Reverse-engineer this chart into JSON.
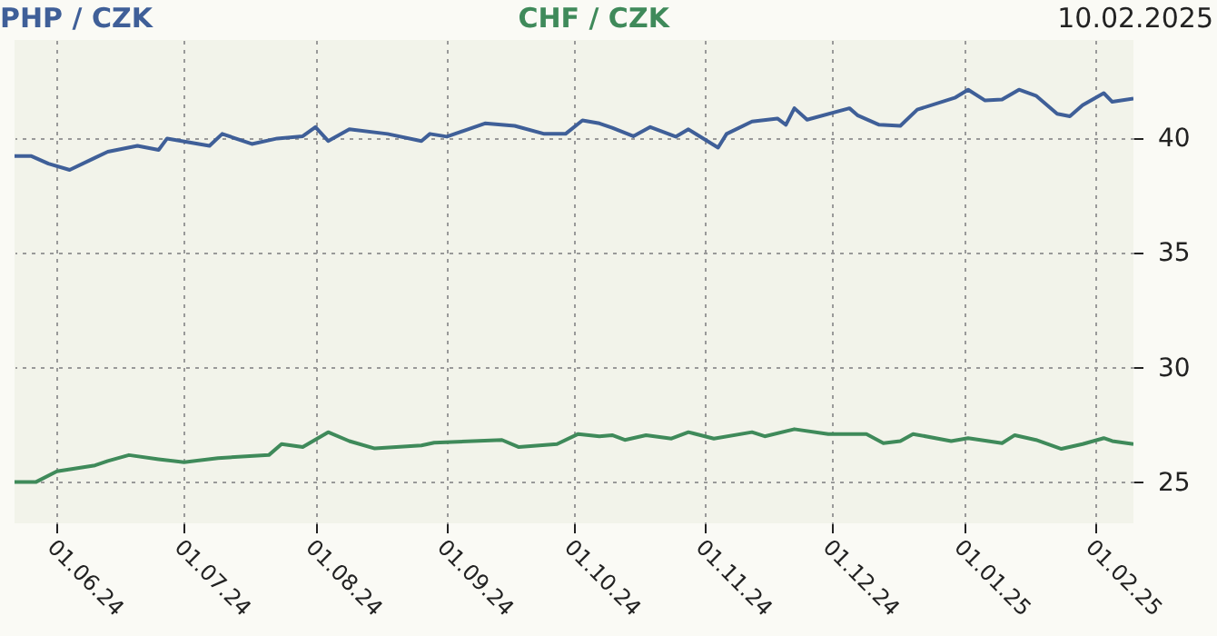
{
  "chart_data": {
    "type": "line",
    "annotations": [
      "10.02.2025"
    ],
    "legend": "top",
    "grid": true,
    "line_style": "solid",
    "xlim": [
      "2024-05-22",
      "2025-02-10"
    ],
    "xticks": [
      {
        "value": "2024-06-01",
        "label": "01.06.24"
      },
      {
        "value": "2024-07-01",
        "label": "01.07.24"
      },
      {
        "value": "2024-08-01",
        "label": "01.08.24"
      },
      {
        "value": "2024-09-01",
        "label": "01.09.24"
      },
      {
        "value": "2024-10-01",
        "label": "01.10.24"
      },
      {
        "value": "2024-11-01",
        "label": "01.11.24"
      },
      {
        "value": "2024-12-01",
        "label": "01.12.24"
      },
      {
        "value": "2025-01-01",
        "label": "01.01.25"
      },
      {
        "value": "2025-02-01",
        "label": "01.02.25"
      }
    ],
    "ylim": [
      23.2,
      44.3
    ],
    "yticks": [
      25,
      30,
      35,
      40
    ],
    "series": [
      {
        "name": "PHP / CZK",
        "color": "#3f5f98",
        "x": [
          "2024-05-22",
          "2024-05-26",
          "2024-05-30",
          "2024-06-04",
          "2024-06-10",
          "2024-06-13",
          "2024-06-20",
          "2024-06-25",
          "2024-06-27",
          "2024-07-07",
          "2024-07-10",
          "2024-07-17",
          "2024-07-23",
          "2024-07-29",
          "2024-08-01",
          "2024-08-04",
          "2024-08-09",
          "2024-08-18",
          "2024-08-26",
          "2024-08-28",
          "2024-09-01",
          "2024-09-10",
          "2024-09-17",
          "2024-09-24",
          "2024-09-29",
          "2024-10-03",
          "2024-10-07",
          "2024-10-10",
          "2024-10-15",
          "2024-10-19",
          "2024-10-25",
          "2024-10-28",
          "2024-11-04",
          "2024-11-06",
          "2024-11-12",
          "2024-11-18",
          "2024-11-20",
          "2024-11-22",
          "2024-11-25",
          "2024-12-05",
          "2024-12-07",
          "2024-12-12",
          "2024-12-17",
          "2024-12-21",
          "2024-12-30",
          "2025-01-02",
          "2025-01-06",
          "2025-01-10",
          "2025-01-14",
          "2025-01-18",
          "2025-01-23",
          "2025-01-26",
          "2025-01-29",
          "2025-02-03",
          "2025-02-05",
          "2025-02-10"
        ],
        "values": [
          39.23,
          39.23,
          38.9,
          38.63,
          39.16,
          39.42,
          39.68,
          39.5,
          40.0,
          39.68,
          40.2,
          39.76,
          40.0,
          40.1,
          40.5,
          39.89,
          40.4,
          40.2,
          39.89,
          40.2,
          40.08,
          40.66,
          40.55,
          40.2,
          40.2,
          40.79,
          40.66,
          40.47,
          40.1,
          40.5,
          40.08,
          40.4,
          39.6,
          40.2,
          40.74,
          40.87,
          40.6,
          41.32,
          40.82,
          41.32,
          41.0,
          40.6,
          40.55,
          41.26,
          41.79,
          42.13,
          41.66,
          41.7,
          42.13,
          41.87,
          41.08,
          40.97,
          41.45,
          41.98,
          41.6,
          41.74
        ]
      },
      {
        "name": "CHF / CZK",
        "color": "#3f8a5a",
        "x": [
          "2024-05-22",
          "2024-05-27",
          "2024-06-01",
          "2024-06-10",
          "2024-06-13",
          "2024-06-18",
          "2024-06-25",
          "2024-07-01",
          "2024-07-09",
          "2024-07-21",
          "2024-07-24",
          "2024-07-29",
          "2024-08-04",
          "2024-08-09",
          "2024-08-15",
          "2024-08-26",
          "2024-08-29",
          "2024-09-14",
          "2024-09-18",
          "2024-09-27",
          "2024-10-02",
          "2024-10-07",
          "2024-10-10",
          "2024-10-13",
          "2024-10-18",
          "2024-10-24",
          "2024-10-28",
          "2024-11-03",
          "2024-11-12",
          "2024-11-15",
          "2024-11-22",
          "2024-11-30",
          "2024-12-09",
          "2024-12-13",
          "2024-12-17",
          "2024-12-20",
          "2024-12-29",
          "2025-01-02",
          "2025-01-10",
          "2025-01-13",
          "2025-01-18",
          "2025-01-24",
          "2025-01-29",
          "2025-02-03",
          "2025-02-05",
          "2025-02-10"
        ],
        "values": [
          25.0,
          25.0,
          25.47,
          25.73,
          25.92,
          26.18,
          26.0,
          25.87,
          26.05,
          26.18,
          26.66,
          26.53,
          27.18,
          26.79,
          26.47,
          26.6,
          26.72,
          26.84,
          26.53,
          26.66,
          27.1,
          27.0,
          27.05,
          26.84,
          27.05,
          26.9,
          27.18,
          26.9,
          27.18,
          27.0,
          27.31,
          27.1,
          27.1,
          26.7,
          26.79,
          27.1,
          26.79,
          26.92,
          26.7,
          27.05,
          26.84,
          26.45,
          26.66,
          26.92,
          26.79,
          26.66
        ]
      }
    ]
  }
}
